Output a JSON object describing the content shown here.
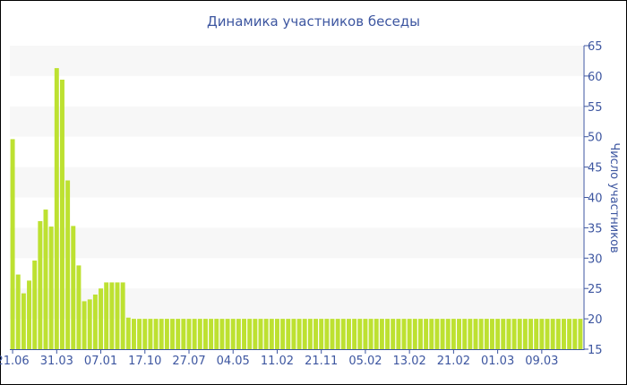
{
  "chart_data": {
    "type": "bar",
    "title": "Динамика участников беседы",
    "ylabel": "Число участников",
    "xlabel": "",
    "ylim": [
      15,
      65
    ],
    "yticks": [
      15,
      20,
      25,
      30,
      35,
      40,
      45,
      50,
      55,
      60,
      65
    ],
    "y_axis_side": "right",
    "grid": "alternating horizontal bands",
    "xtick_labels": [
      "21.06",
      "31.03",
      "07.01",
      "17.10",
      "27.07",
      "04.05",
      "11.02",
      "21.11",
      "05.02",
      "13.02",
      "21.02",
      "01.03",
      "09.03"
    ],
    "xtick_every": 8,
    "values": [
      49.6,
      27.3,
      24.2,
      26.3,
      29.6,
      36.1,
      38,
      35.2,
      61.3,
      59.4,
      42.8,
      35.3,
      28.8,
      22.9,
      23.2,
      24,
      25,
      26,
      26,
      26,
      26,
      20.2,
      20,
      20,
      20,
      20,
      20,
      20,
      20,
      20,
      20,
      20,
      20,
      20,
      20,
      20,
      20,
      20,
      20,
      20,
      20,
      20,
      20,
      20,
      20,
      20,
      20,
      20,
      20,
      20,
      20,
      20,
      20,
      20,
      20,
      20,
      20,
      20,
      20,
      20,
      20,
      20,
      20,
      20,
      20,
      20,
      20,
      20,
      20,
      20,
      20,
      20,
      20,
      20,
      20,
      20,
      20,
      20,
      20,
      20,
      20,
      20,
      20,
      20,
      20,
      20,
      20,
      20,
      20,
      20,
      20,
      20,
      20,
      20,
      20,
      20,
      20,
      20,
      20,
      20,
      20,
      20,
      20,
      20
    ],
    "colors": {
      "bar": "#bde131",
      "text": "#3d56a0",
      "axis": "#3d56a0",
      "band": "#f7f7f7"
    }
  }
}
